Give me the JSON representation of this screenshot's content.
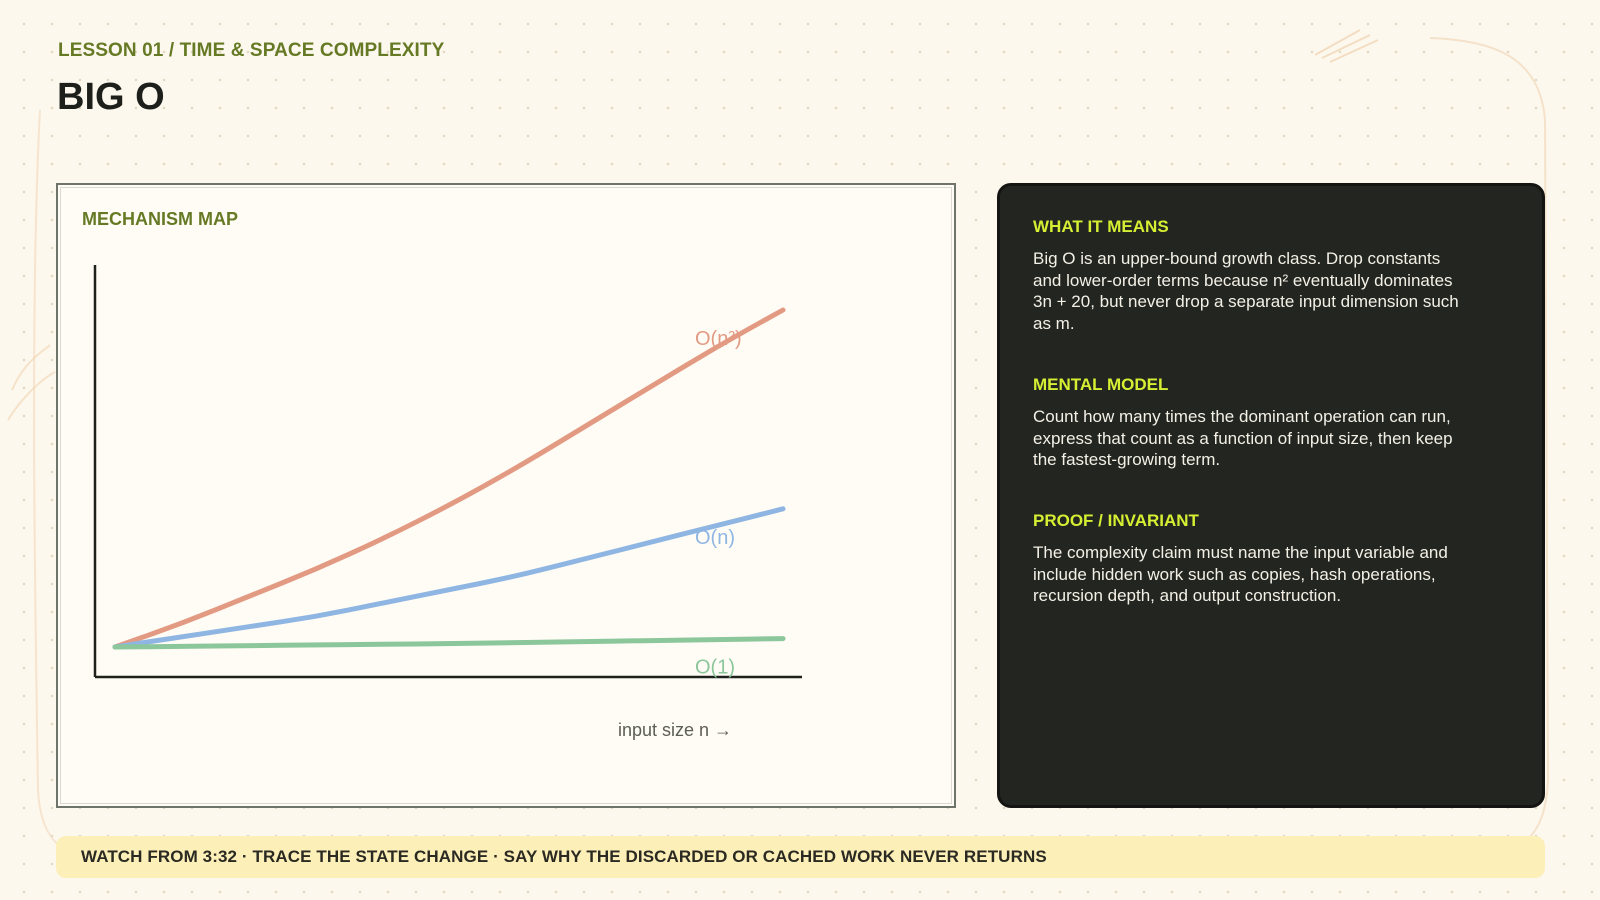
{
  "header": {
    "kicker": "LESSON 01 / TIME & SPACE COMPLEXITY",
    "title": "BIG O"
  },
  "mechanism_map": {
    "label": "MECHANISM MAP",
    "x_axis_label": "input size n →"
  },
  "chart_data": {
    "type": "line",
    "title": "",
    "xlabel": "input size n →",
    "ylabel": "",
    "grid": false,
    "legend": "labels at line ends",
    "xlim": [
      0,
      1
    ],
    "ylim": [
      0,
      1
    ],
    "x": [
      0,
      0.1,
      0.2,
      0.3,
      0.4,
      0.5,
      0.6,
      0.7,
      0.8,
      0.9,
      1.0
    ],
    "series": [
      {
        "name": "O(n²)",
        "color": "#e39a83",
        "values": [
          0.0,
          0.07,
          0.15,
          0.23,
          0.32,
          0.42,
          0.53,
          0.65,
          0.77,
          0.89,
          1.0
        ]
      },
      {
        "name": "O(n)",
        "color": "#8fb6e3",
        "values": [
          0.0,
          0.03,
          0.06,
          0.09,
          0.13,
          0.17,
          0.21,
          0.26,
          0.31,
          0.36,
          0.41
        ]
      },
      {
        "name": "O(1)",
        "color": "#8cc69b",
        "values": [
          0.0,
          0.002,
          0.004,
          0.006,
          0.008,
          0.01,
          0.013,
          0.016,
          0.019,
          0.022,
          0.025
        ]
      }
    ]
  },
  "info": {
    "sections": [
      {
        "heading": "WHAT IT MEANS",
        "body": "Big O is an upper-bound growth class. Drop constants and lower-order terms because n² eventually dominates 3n + 20, but never drop a separate input dimension such as m."
      },
      {
        "heading": "MENTAL MODEL",
        "body": "Count how many times the dominant operation can run, express that count as a function of input size, then keep the fastest-growing term."
      },
      {
        "heading": "PROOF / INVARIANT",
        "body": "The complexity claim must name the input variable and include hidden work such as copies, hash operations, recursion depth, and output construction."
      }
    ]
  },
  "banner": {
    "text": "WATCH FROM 3:32 · TRACE THE STATE CHANGE · SAY WHY THE DISCARDED OR CACHED WORK NEVER RETURNS"
  },
  "colors": {
    "accent_green": "#667a25",
    "accent_lime": "#d6ef33",
    "panel_dark": "#232520",
    "banner_bg": "#fdefb8"
  }
}
